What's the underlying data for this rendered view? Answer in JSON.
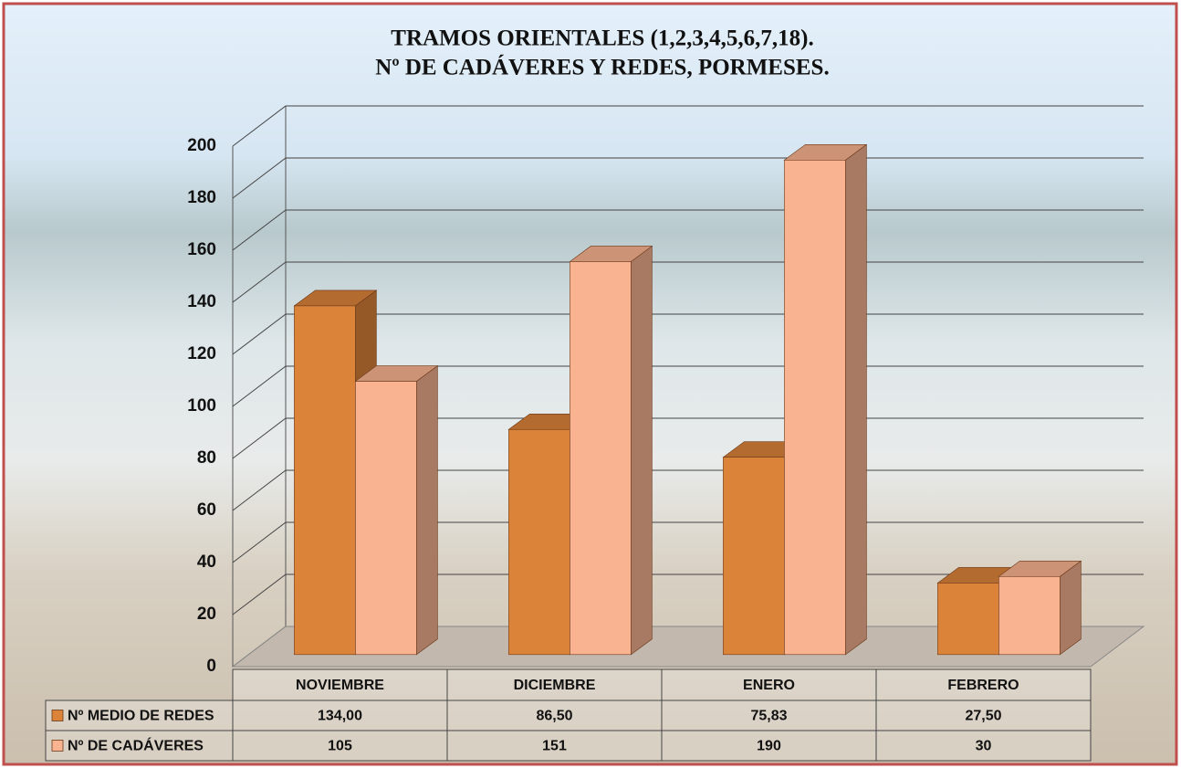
{
  "chart_data": {
    "type": "bar3d",
    "title": "TRAMOS ORIENTALES (1,2,3,4,5,6,7,18).",
    "subtitle": "Nº DE CADÁVERES Y REDES, PORMESES.",
    "categories": [
      "NOVIEMBRE",
      "DICIEMBRE",
      "ENERO",
      "FEBRERO"
    ],
    "series": [
      {
        "name": "Nº MEDIO DE REDES",
        "color": "#db8339",
        "values": [
          134.0,
          86.5,
          75.83,
          27.5
        ],
        "value_labels": [
          "134,00",
          "86,50",
          "75,83",
          "27,50"
        ]
      },
      {
        "name": "Nº DE CADÁVERES",
        "color": "#f9b391",
        "values": [
          105,
          151,
          190,
          30
        ]
      }
    ],
    "ylim": [
      0,
      200
    ],
    "yticks": [
      0,
      20,
      40,
      60,
      80,
      100,
      120,
      140,
      160,
      180,
      200
    ],
    "grid": true
  }
}
